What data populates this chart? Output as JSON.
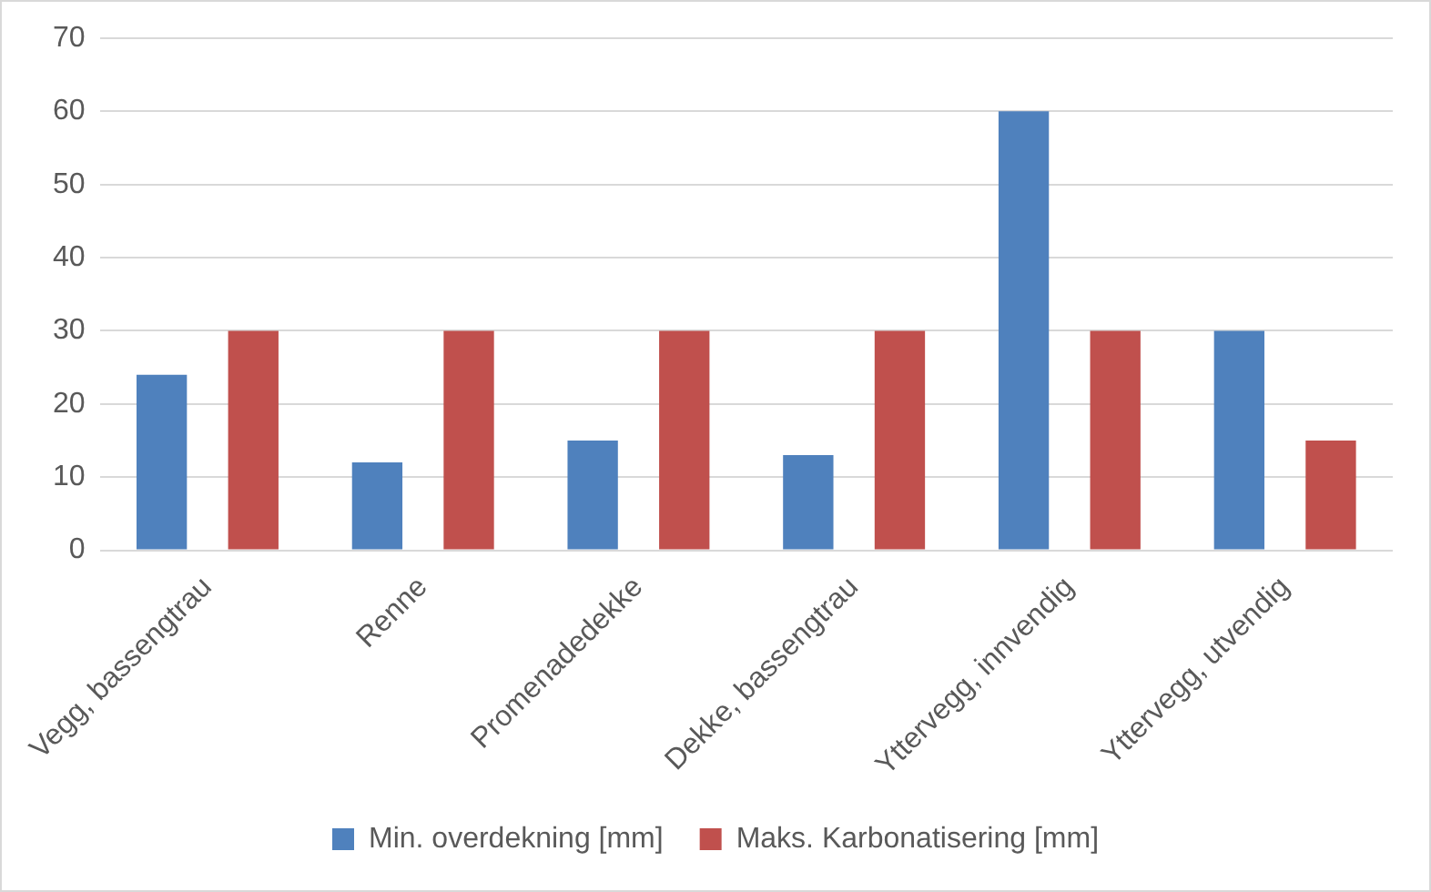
{
  "chart_data": {
    "type": "bar",
    "categories": [
      "Vegg, bassengtrau",
      "Renne",
      "Promenadedekke",
      "Dekke, bassengtrau",
      "Yttervegg, innvendig",
      "Yttervegg, utvendig"
    ],
    "series": [
      {
        "name": "Min. overdekning [mm]",
        "color": "#4f81bd",
        "values": [
          24,
          12,
          15,
          13,
          60,
          30
        ]
      },
      {
        "name": "Maks. Karbonatisering [mm]",
        "color": "#c0504d",
        "values": [
          30,
          30,
          30,
          30,
          30,
          15
        ]
      }
    ],
    "ylim": [
      0,
      70
    ],
    "yticks": [
      0,
      10,
      20,
      30,
      40,
      50,
      60,
      70
    ],
    "grid": "y",
    "legend": "bottom"
  }
}
